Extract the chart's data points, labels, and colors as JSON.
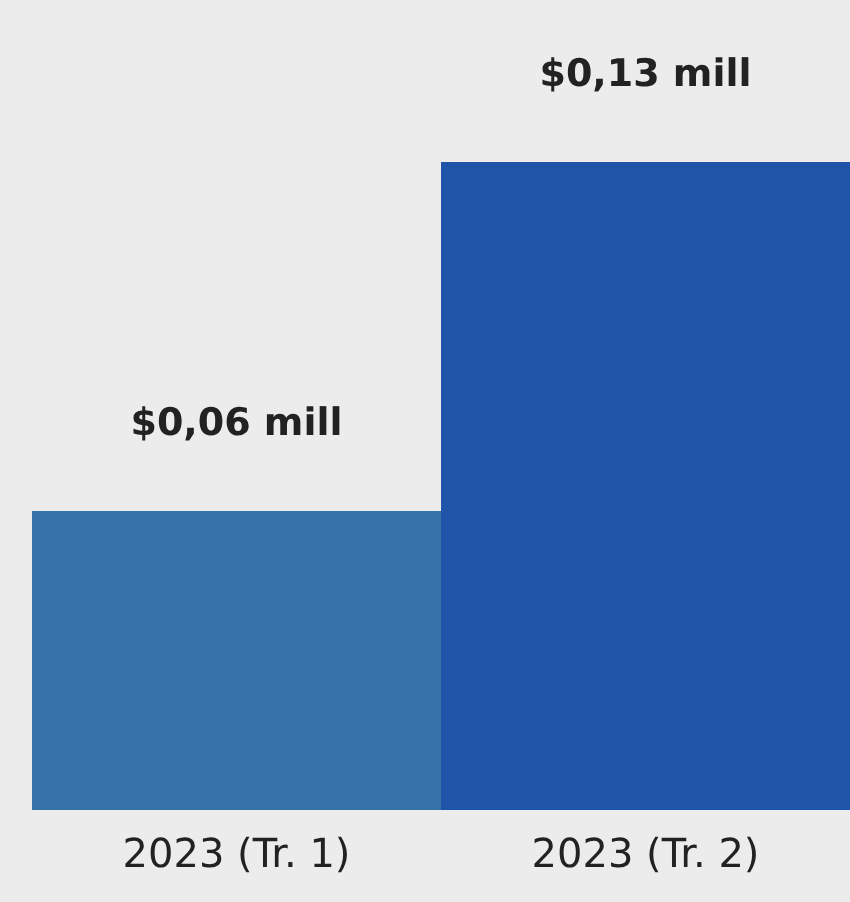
{
  "chart_data": {
    "type": "bar",
    "categories": [
      "2023 (Tr. 1)",
      "2023 (Tr. 2)"
    ],
    "values": [
      0.06,
      0.13
    ],
    "colors": [
      "#3573a8",
      "#1f54a8"
    ],
    "value_labels": [
      "$0,06 mill",
      "$0,13 mill"
    ]
  }
}
